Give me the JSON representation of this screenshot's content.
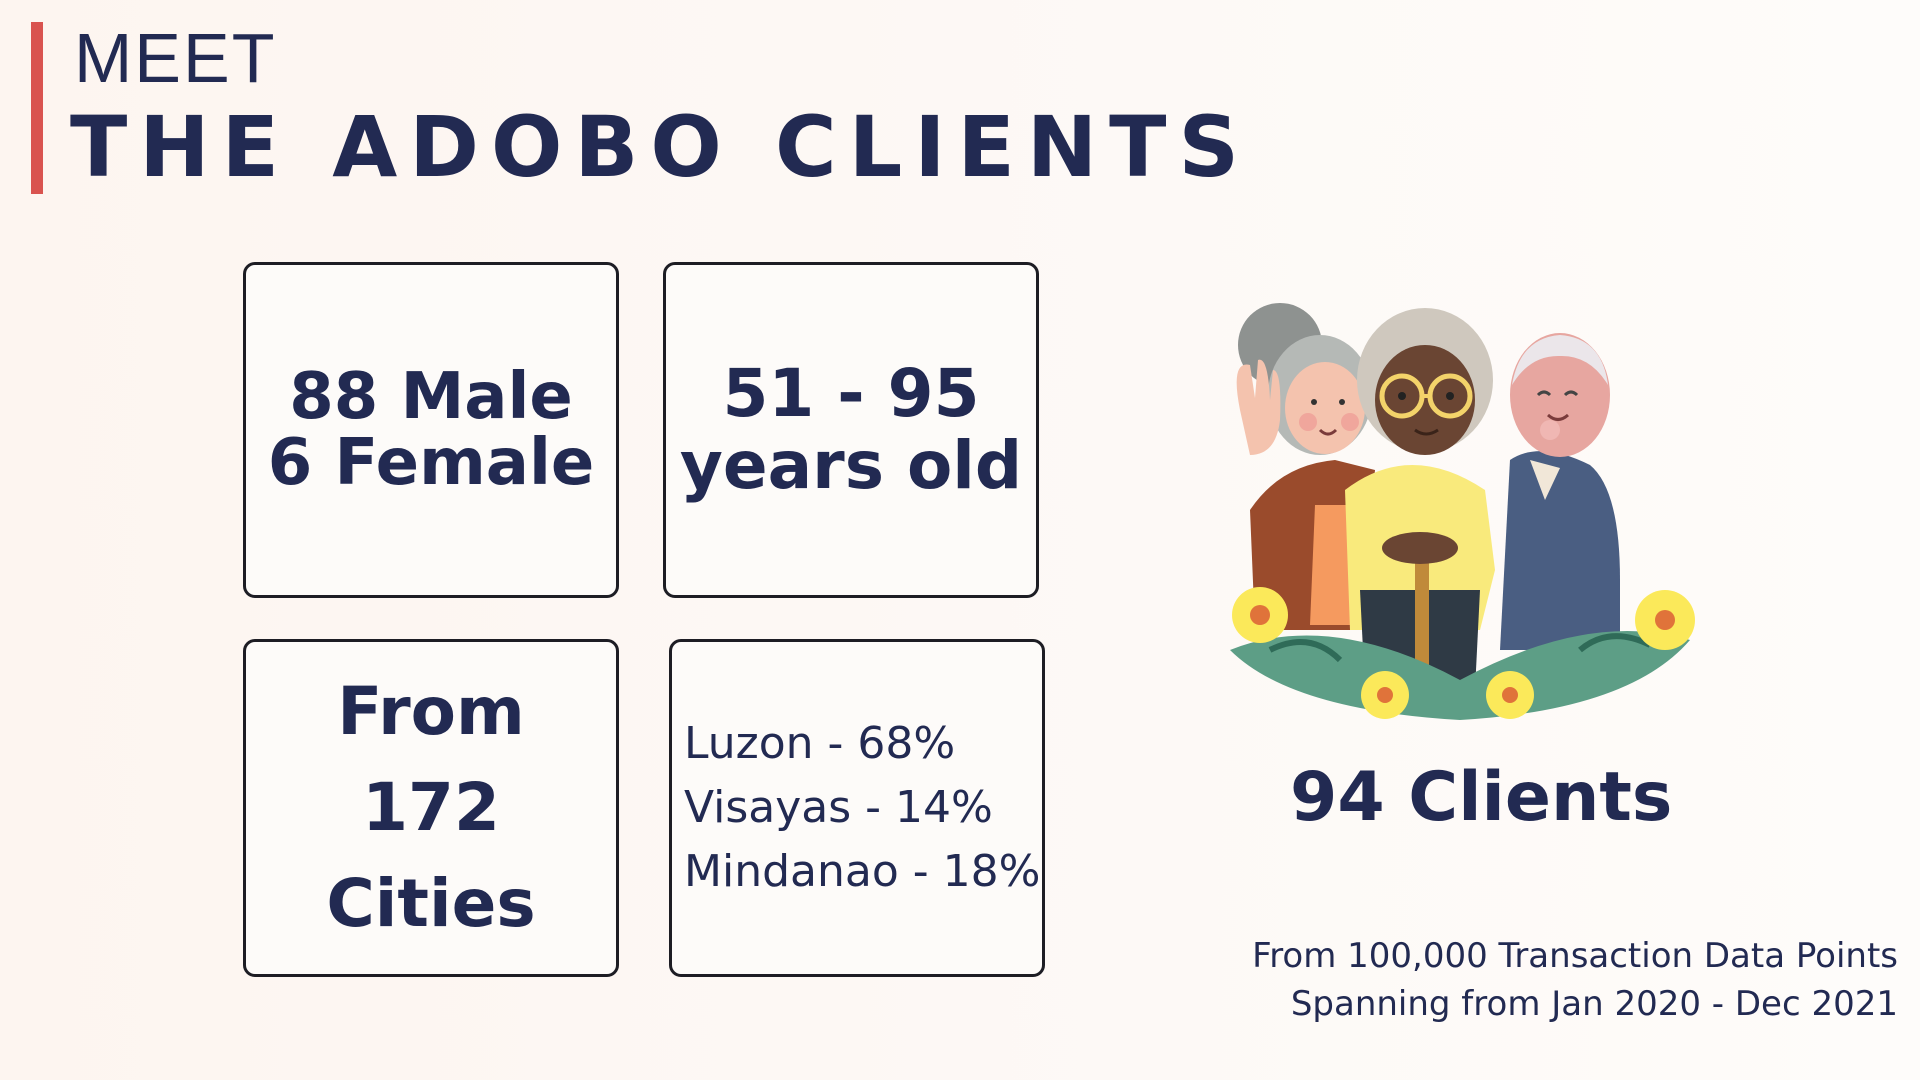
{
  "header": {
    "kicker": "MEET",
    "title": "THE ADOBO CLIENTS"
  },
  "cards": {
    "gender": {
      "line1": "88 Male",
      "line2": "6 Female"
    },
    "age": {
      "line1": "51 - 95",
      "line2": "years old"
    },
    "cities": {
      "line1": "From",
      "line2": "172 Cities"
    },
    "regions": [
      {
        "text": "Luzon - 68%"
      },
      {
        "text": "Visayas - 14%"
      },
      {
        "text": "Mindanao - 18%"
      }
    ]
  },
  "clients": {
    "count_label": "94 Clients"
  },
  "footnote": {
    "line1": "From 100,000 Transaction Data Points",
    "line2": "Spanning from Jan 2020 - Dec 2021"
  },
  "colors": {
    "text": "#222a52",
    "accent": "#d9534f",
    "card_border": "#1d1d24"
  },
  "icons": {
    "illustration": "elderly-group-illustration"
  }
}
